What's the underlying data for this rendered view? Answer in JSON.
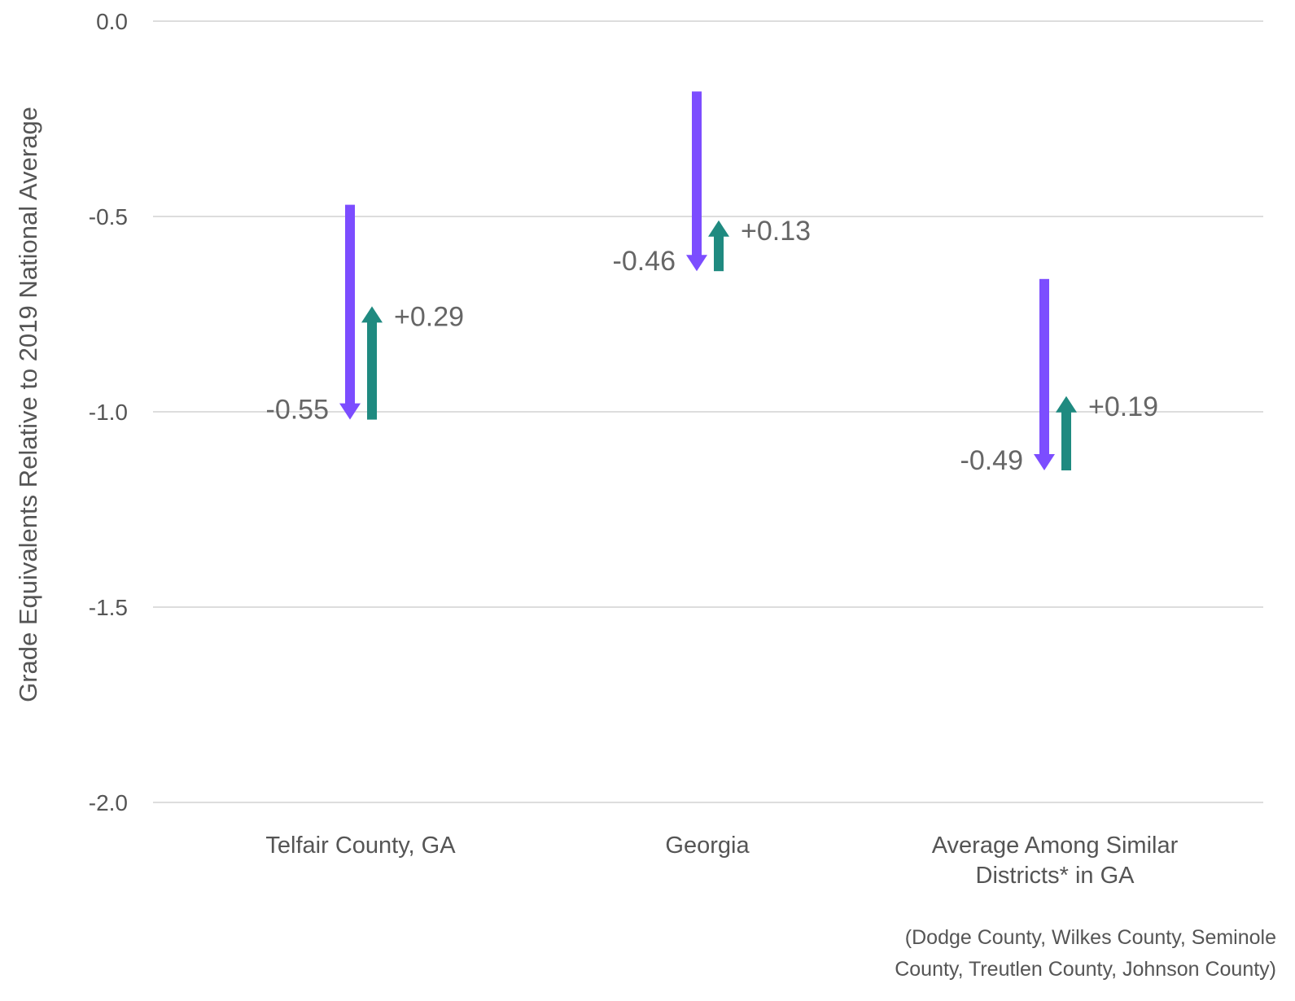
{
  "chart_data": {
    "type": "arrow",
    "ylabel": "Grade Equivalents Relative to 2019 National Average",
    "ylim": [
      -2.0,
      0.0
    ],
    "yticks": [
      {
        "value": 0.0,
        "label": "0.0"
      },
      {
        "value": -0.5,
        "label": "-0.5"
      },
      {
        "value": -1.0,
        "label": "-1.0"
      },
      {
        "value": -1.5,
        "label": "-1.5"
      },
      {
        "value": -2.0,
        "label": "-2.0"
      }
    ],
    "grid": true,
    "categories": [
      {
        "lines": [
          "Telfair County, GA"
        ],
        "decline": {
          "start": -0.47,
          "end": -1.02,
          "label": "-0.55"
        },
        "recovery": {
          "start": -1.02,
          "end": -0.73,
          "label": "+0.29"
        }
      },
      {
        "lines": [
          "Georgia"
        ],
        "decline": {
          "start": -0.18,
          "end": -0.64,
          "label": "-0.46"
        },
        "recovery": {
          "start": -0.64,
          "end": -0.51,
          "label": "+0.13"
        }
      },
      {
        "lines": [
          "Average Among Similar",
          "Districts* in GA"
        ],
        "decline": {
          "start": -0.66,
          "end": -1.15,
          "label": "-0.49"
        },
        "recovery": {
          "start": -1.15,
          "end": -0.96,
          "label": "+0.19"
        }
      }
    ],
    "colors": {
      "decline": "#7c4dff",
      "recovery": "#1f8a80"
    },
    "footnote_lines": [
      "(Dodge County, Wilkes County, Seminole",
      "County, Treutlen County, Johnson County)"
    ]
  }
}
